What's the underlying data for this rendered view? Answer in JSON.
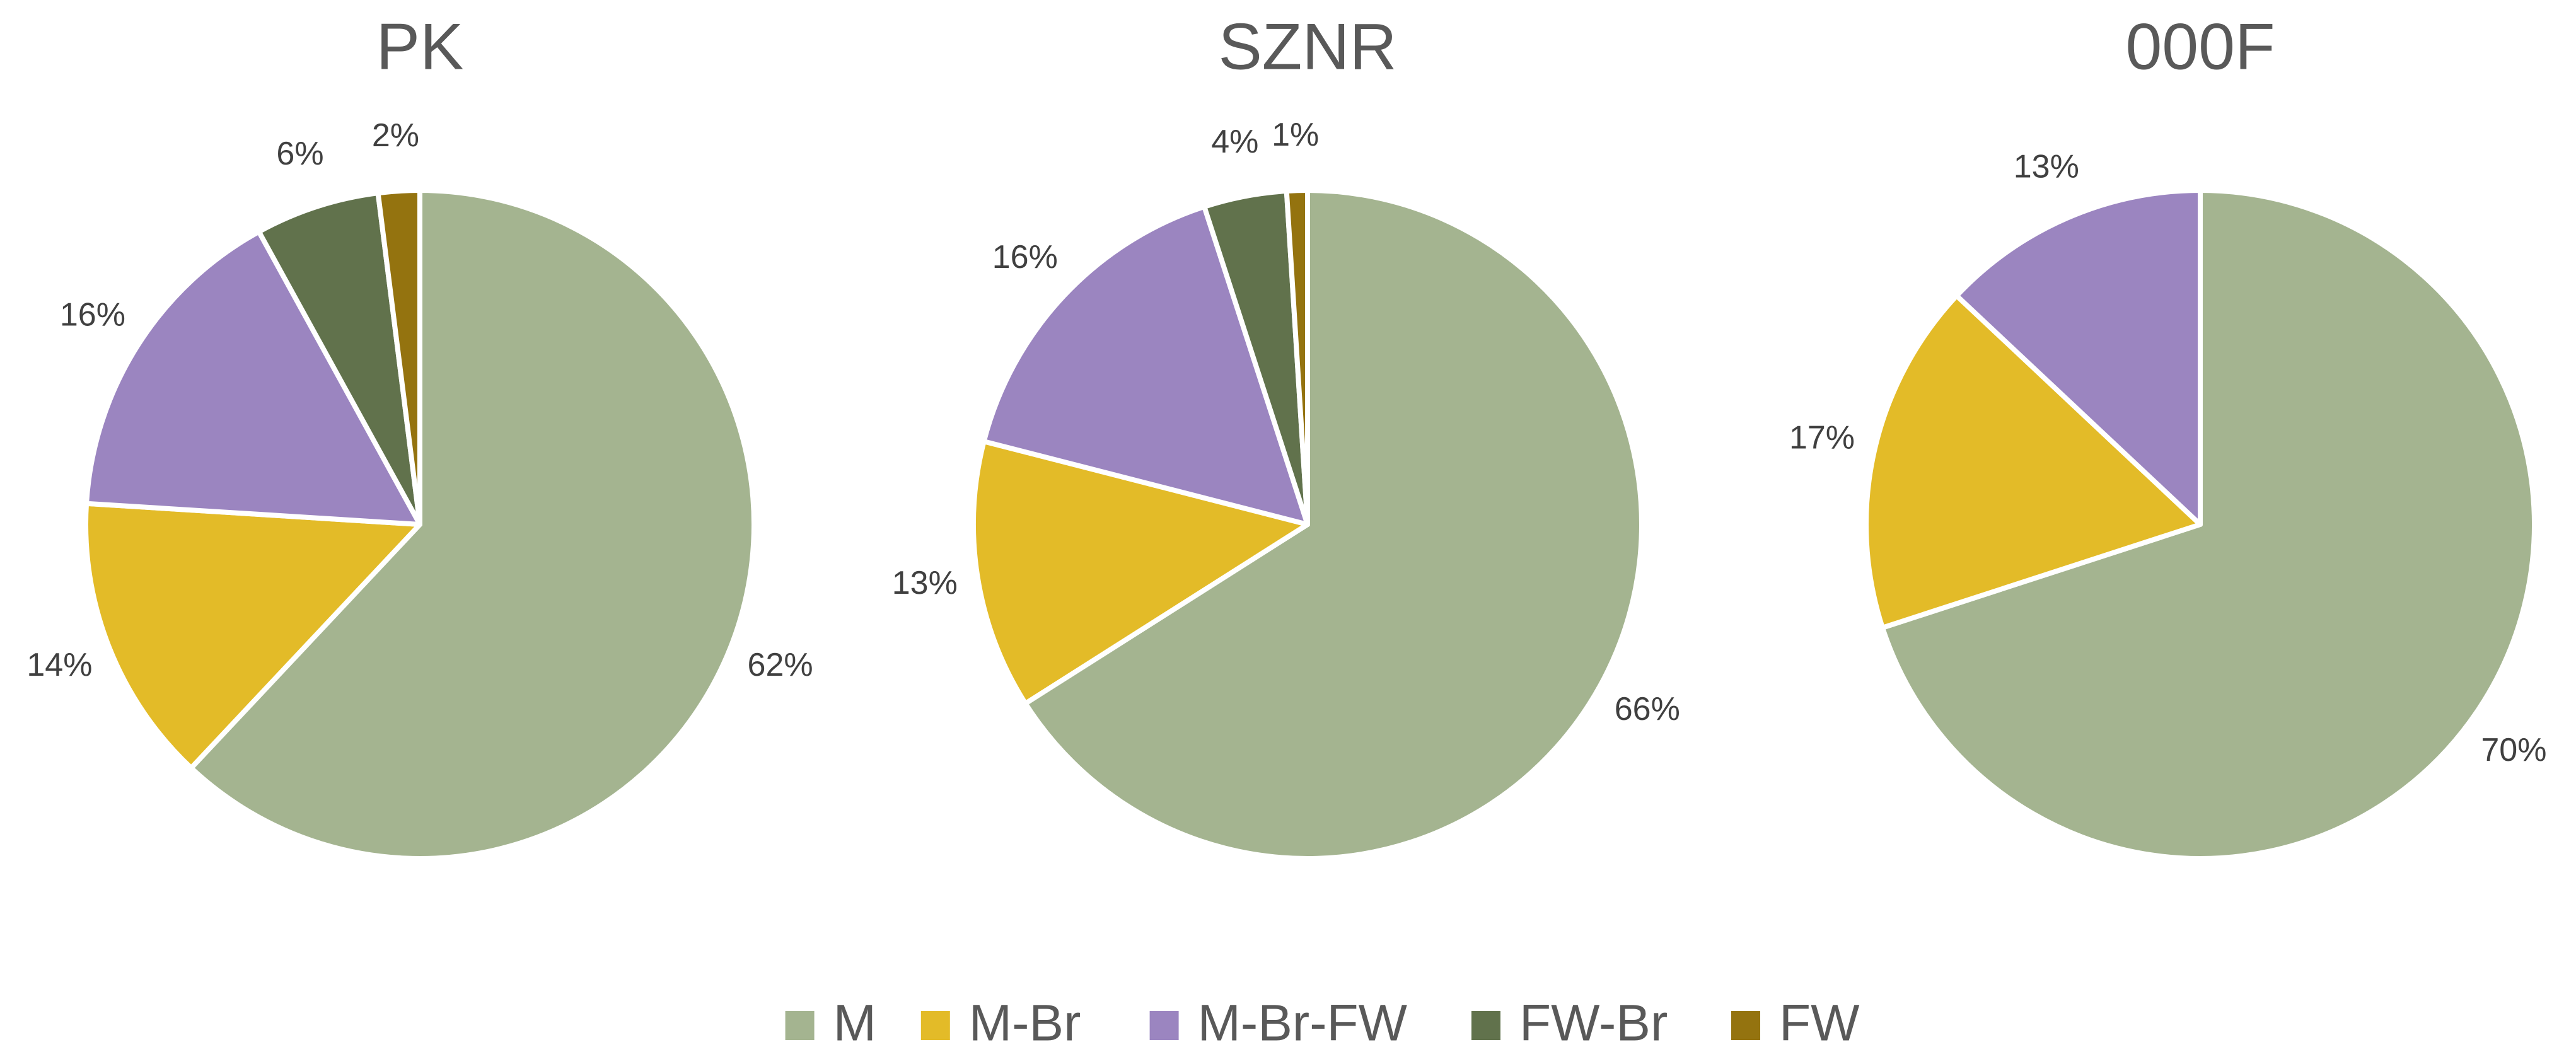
{
  "chart_data": [
    {
      "type": "pie",
      "title": "PK",
      "slices": [
        {
          "name": "M",
          "value": 62,
          "label": "62%"
        },
        {
          "name": "M-Br",
          "value": 14,
          "label": "14%"
        },
        {
          "name": "M-Br-FW",
          "value": 16,
          "label": "16%"
        },
        {
          "name": "FW-Br",
          "value": 6,
          "label": "6%"
        },
        {
          "name": "FW",
          "value": 2,
          "label": "2%"
        }
      ]
    },
    {
      "type": "pie",
      "title": "SZNR",
      "slices": [
        {
          "name": "M",
          "value": 66,
          "label": "66%"
        },
        {
          "name": "M-Br",
          "value": 13,
          "label": "13%"
        },
        {
          "name": "M-Br-FW",
          "value": 16,
          "label": "16%"
        },
        {
          "name": "FW-Br",
          "value": 4,
          "label": "4%"
        },
        {
          "name": "FW",
          "value": 1,
          "label": "1%"
        }
      ]
    },
    {
      "type": "pie",
      "title": "000F",
      "slices": [
        {
          "name": "M",
          "value": 70,
          "label": "70%"
        },
        {
          "name": "M-Br",
          "value": 17,
          "label": "17%"
        },
        {
          "name": "M-Br-FW",
          "value": 13,
          "label": "13%"
        }
      ]
    }
  ],
  "legend": {
    "placement": "bottom-center",
    "items": [
      {
        "name": "M",
        "color": "#a4b490"
      },
      {
        "name": "M-Br",
        "color": "#e3bb28"
      },
      {
        "name": "M-Br-FW",
        "color": "#9b85c0"
      },
      {
        "name": "FW-Br",
        "color": "#61724c"
      },
      {
        "name": "FW",
        "color": "#94730f"
      }
    ]
  }
}
